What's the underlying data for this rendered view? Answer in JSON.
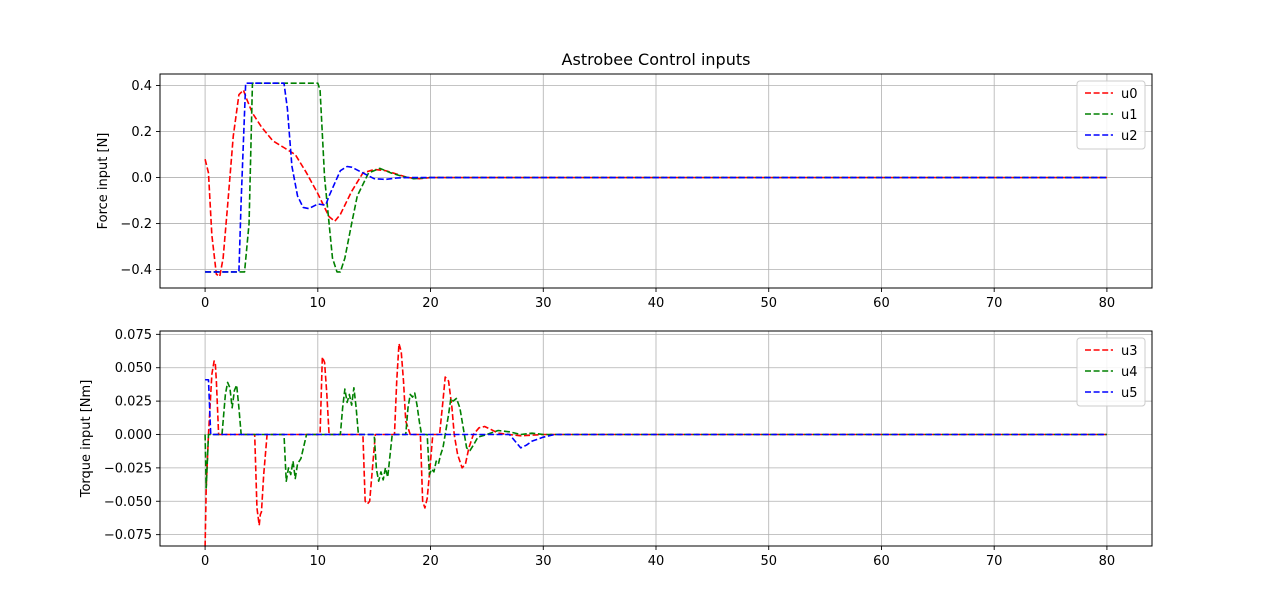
{
  "chart_data": [
    {
      "type": "line",
      "title": "Astrobee Control inputs",
      "xlabel": "",
      "ylabel": "Force input [N]",
      "xlim": [
        -4,
        84
      ],
      "ylim": [
        -0.48,
        0.45
      ],
      "xticks": [
        0,
        10,
        20,
        30,
        40,
        50,
        60,
        70,
        80
      ],
      "xtick_labels": [
        "0",
        "10",
        "20",
        "30",
        "40",
        "50",
        "60",
        "70",
        "80"
      ],
      "yticks": [
        -0.4,
        -0.2,
        0.0,
        0.2,
        0.4
      ],
      "ytick_labels": [
        "−0.4",
        "−0.2",
        "0.0",
        "0.2",
        "0.4"
      ],
      "grid": true,
      "legend_position": "top-right",
      "series": [
        {
          "name": "u0",
          "color": "#ff0000",
          "x": [
            0,
            0.3,
            0.6,
            1.0,
            1.3,
            1.6,
            2.0,
            2.5,
            3.0,
            3.4,
            3.7,
            4.2,
            5.0,
            6.0,
            7.0,
            8.0,
            9.0,
            10.0,
            11.0,
            11.5,
            12.0,
            13.0,
            14.0,
            15.0,
            16.0,
            17.0,
            18.0,
            19.0,
            20.0,
            80.0
          ],
          "values": [
            0.08,
            0.02,
            -0.25,
            -0.42,
            -0.43,
            -0.35,
            -0.12,
            0.18,
            0.36,
            0.38,
            0.34,
            0.28,
            0.22,
            0.16,
            0.13,
            0.1,
            0.02,
            -0.07,
            -0.17,
            -0.19,
            -0.16,
            -0.06,
            0.02,
            0.035,
            0.03,
            0.015,
            0.0,
            -0.005,
            0.0,
            0.0
          ]
        },
        {
          "name": "u1",
          "color": "#008000",
          "x": [
            0,
            3.5,
            3.9,
            4.2,
            10.0,
            10.2,
            10.6,
            11.0,
            11.3,
            11.7,
            12.0,
            12.4,
            13.0,
            13.5,
            14.5,
            15.5,
            16.5,
            17.5,
            18.5,
            20.0,
            80.0
          ],
          "values": [
            -0.41,
            -0.41,
            -0.2,
            0.41,
            0.41,
            0.38,
            0.0,
            -0.2,
            -0.35,
            -0.41,
            -0.41,
            -0.35,
            -0.2,
            -0.08,
            0.02,
            0.04,
            0.02,
            0.005,
            -0.005,
            0.0,
            0.0
          ]
        },
        {
          "name": "u2",
          "color": "#0000ff",
          "x": [
            0,
            3.0,
            3.2,
            3.6,
            7.0,
            7.3,
            7.7,
            8.2,
            8.7,
            9.2,
            10.0,
            10.7,
            11.0,
            12.0,
            12.6,
            13.0,
            14.0,
            15.0,
            16.0,
            17.0,
            18.0,
            20.0,
            80.0
          ],
          "values": [
            -0.41,
            -0.41,
            -0.1,
            0.41,
            0.41,
            0.3,
            0.05,
            -0.08,
            -0.13,
            -0.135,
            -0.115,
            -0.12,
            -0.08,
            0.03,
            0.048,
            0.045,
            0.02,
            -0.005,
            -0.008,
            -0.002,
            0.0,
            0.0,
            0.0
          ]
        }
      ]
    },
    {
      "type": "line",
      "title": "",
      "xlabel": "",
      "ylabel": "Torque input [Nm]",
      "xlim": [
        -4,
        84
      ],
      "ylim": [
        -0.0835,
        0.0775
      ],
      "xticks": [
        0,
        10,
        20,
        30,
        40,
        50,
        60,
        70,
        80
      ],
      "xtick_labels": [
        "0",
        "10",
        "20",
        "30",
        "40",
        "50",
        "60",
        "70",
        "80"
      ],
      "yticks": [
        -0.075,
        -0.05,
        -0.025,
        0.0,
        0.025,
        0.05,
        0.075
      ],
      "ytick_labels": [
        "−0.075",
        "−0.050",
        "−0.025",
        "0.000",
        "0.025",
        "0.050",
        "0.075"
      ],
      "grid": true,
      "legend_position": "top-right",
      "series": [
        {
          "name": "u3",
          "color": "#ff0000",
          "x": [
            0,
            0.1,
            0.3,
            0.6,
            0.8,
            0.9,
            1.0,
            1.2,
            4.4,
            4.6,
            4.8,
            4.9,
            5.0,
            5.2,
            5.5,
            10.2,
            10.4,
            10.6,
            10.8,
            11.0,
            14.0,
            14.2,
            14.4,
            14.6,
            14.8,
            15.1,
            16.8,
            17.0,
            17.2,
            17.4,
            17.6,
            17.8,
            18.2,
            19.1,
            19.3,
            19.5,
            19.7,
            19.9,
            20.2,
            20.8,
            21.1,
            21.3,
            21.6,
            21.9,
            22.1,
            22.4,
            22.8,
            23.1,
            23.4,
            23.8,
            24.3,
            24.8,
            25.3,
            26.0,
            27.0,
            28.0,
            30.0,
            80.0
          ],
          "values": [
            -0.084,
            -0.04,
            0.0,
            0.045,
            0.055,
            0.054,
            0.04,
            0.0,
            0.0,
            -0.055,
            -0.068,
            -0.06,
            -0.058,
            -0.03,
            0.0,
            0.0,
            0.058,
            0.054,
            0.03,
            0.0,
            0.0,
            -0.05,
            -0.052,
            -0.05,
            -0.03,
            0.0,
            0.0,
            0.04,
            0.068,
            0.062,
            0.04,
            0.01,
            0.0,
            0.0,
            -0.05,
            -0.055,
            -0.048,
            -0.03,
            0.0,
            0.0,
            0.025,
            0.043,
            0.04,
            0.02,
            0.0,
            -0.015,
            -0.025,
            -0.022,
            -0.01,
            0.0,
            0.005,
            0.006,
            0.004,
            0.001,
            0.0,
            -0.001,
            0.0,
            0.0
          ]
        },
        {
          "name": "u4",
          "color": "#008000",
          "x": [
            0,
            0.1,
            0.3,
            0.5,
            0.8,
            1.5,
            1.8,
            2.0,
            2.2,
            2.4,
            2.6,
            2.8,
            3.0,
            3.2,
            7.0,
            7.2,
            7.4,
            7.6,
            7.8,
            8.0,
            8.2,
            8.5,
            9.0,
            12.0,
            12.2,
            12.4,
            12.6,
            12.8,
            13.0,
            13.2,
            13.4,
            13.6,
            15.0,
            15.2,
            15.4,
            15.6,
            15.8,
            16.0,
            16.2,
            16.6,
            17.8,
            18.0,
            18.2,
            18.4,
            18.6,
            18.8,
            19.0,
            19.2,
            19.7,
            19.9,
            20.1,
            20.3,
            20.5,
            20.7,
            20.9,
            21.1,
            21.3,
            21.6,
            21.8,
            22.0,
            22.3,
            22.6,
            22.9,
            23.2,
            23.5,
            23.8,
            24.2,
            25.0,
            26.0,
            27.0,
            28.0,
            29.0,
            30.0,
            31.0,
            80.0
          ],
          "values": [
            0.0,
            -0.04,
            0.0,
            0.0,
            0.0,
            0.0,
            0.03,
            0.039,
            0.035,
            0.02,
            0.033,
            0.037,
            0.02,
            0.0,
            0.0,
            -0.035,
            -0.025,
            -0.03,
            -0.02,
            -0.033,
            -0.022,
            -0.018,
            0.0,
            0.0,
            0.02,
            0.034,
            0.024,
            0.03,
            0.022,
            0.035,
            0.02,
            0.0,
            0.0,
            -0.026,
            -0.035,
            -0.028,
            -0.034,
            -0.025,
            -0.032,
            0.0,
            0.0,
            0.02,
            0.03,
            0.028,
            0.031,
            0.022,
            0.01,
            0.0,
            0.0,
            -0.03,
            -0.026,
            -0.028,
            -0.02,
            -0.022,
            -0.015,
            -0.01,
            0.0,
            0.015,
            0.027,
            0.025,
            0.027,
            0.02,
            0.005,
            -0.01,
            -0.012,
            -0.008,
            -0.002,
            0.0,
            0.003,
            0.002,
            0.0,
            0.001,
            0.0,
            0.0,
            0.0
          ]
        },
        {
          "name": "u5",
          "color": "#0000ff",
          "x": [
            0,
            0.3,
            0.5,
            0.8,
            27.0,
            27.6,
            28.0,
            28.5,
            29.0,
            30.0,
            31.0,
            32.0,
            80.0
          ],
          "values": [
            0.041,
            0.041,
            0.0,
            0.0,
            0.0,
            -0.006,
            -0.01,
            -0.008,
            -0.005,
            -0.002,
            0.0,
            0.0,
            0.0
          ]
        }
      ]
    }
  ]
}
